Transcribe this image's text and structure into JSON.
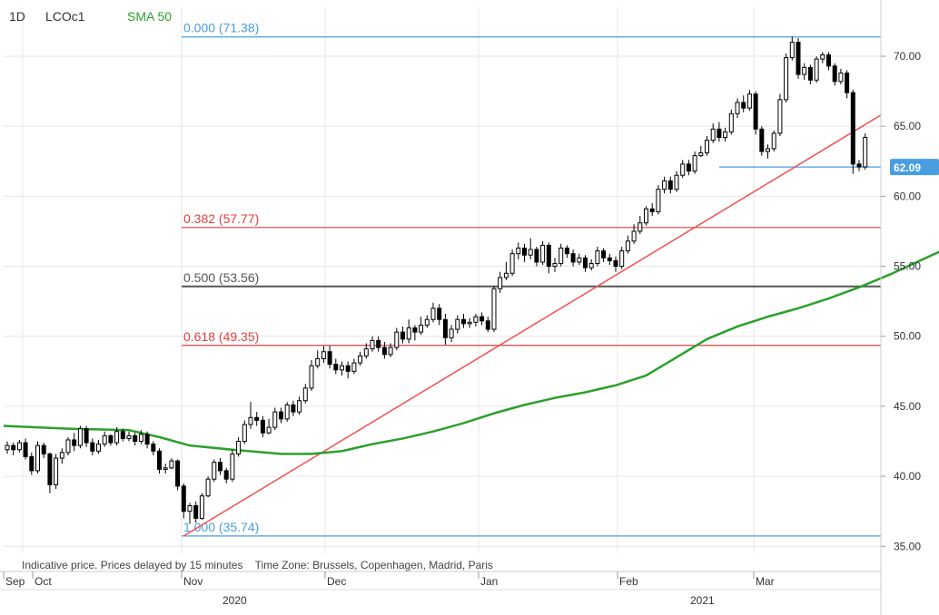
{
  "header": {
    "interval": "1D",
    "symbol": "LCOc1",
    "indicator": "SMA 50"
  },
  "footer_note": "Indicative price. Prices delayed by 15 minutes    Time Zone: Brussels, Copenhagen, Madrid, Paris",
  "colors": {
    "sma": "#2ca02c",
    "trend": "#f05050",
    "fib_blue": "#4a9ee0",
    "fib_red": "#e04040",
    "fib_gray": "#555555",
    "candle": "#000000",
    "last_price_badge": "#4a9ee0",
    "grid": "#e6e6e6"
  },
  "chart_data": {
    "type": "candlestick",
    "y_axis": {
      "range": [
        34.5,
        73.5
      ],
      "ticks": [
        "70.00",
        "65.00",
        "60.00",
        "55.00",
        "50.00",
        "45.00",
        "40.00",
        "35.00"
      ],
      "side": "right"
    },
    "x_axis": {
      "months": [
        "Sep",
        "Oct",
        "Nov",
        "Dec",
        "Jan",
        "Feb",
        "Mar"
      ],
      "years": [
        "2020",
        "2021"
      ]
    },
    "last_price": "62.09",
    "fibonacci": [
      {
        "label": "0.000 (71.38)",
        "value": 71.38,
        "color": "blue"
      },
      {
        "label": "0.382 (57.77)",
        "value": 57.77,
        "color": "red"
      },
      {
        "label": "0.500 (53.56)",
        "value": 53.56,
        "color": "gray"
      },
      {
        "label": "0.618 (49.35)",
        "value": 49.35,
        "color": "red"
      },
      {
        "label": "1.000 (35.74)",
        "value": 35.74,
        "color": "blue"
      }
    ],
    "support_line": {
      "value": 62.09
    },
    "trend_line": {
      "from": {
        "bar": 37,
        "value": 35.74
      },
      "to": {
        "bar": 186,
        "value": 65.8
      }
    },
    "sma50": [
      [
        0,
        43.6
      ],
      [
        10,
        43.4
      ],
      [
        20,
        43.3
      ],
      [
        25,
        42.8
      ],
      [
        30,
        42.2
      ],
      [
        37,
        41.9
      ],
      [
        45,
        41.6
      ],
      [
        50,
        41.6
      ],
      [
        55,
        41.8
      ],
      [
        60,
        42.3
      ],
      [
        65,
        42.7
      ],
      [
        70,
        43.2
      ],
      [
        75,
        43.8
      ],
      [
        80,
        44.5
      ],
      [
        85,
        45.1
      ],
      [
        90,
        45.6
      ],
      [
        95,
        46.0
      ],
      [
        100,
        46.5
      ],
      [
        105,
        47.2
      ],
      [
        110,
        48.5
      ],
      [
        115,
        49.8
      ],
      [
        120,
        50.7
      ],
      [
        125,
        51.4
      ],
      [
        130,
        52.0
      ],
      [
        135,
        52.7
      ],
      [
        140,
        53.5
      ],
      [
        145,
        54.4
      ],
      [
        150,
        55.4
      ],
      [
        155,
        56.4
      ],
      [
        160,
        57.3
      ],
      [
        165,
        57.9
      ],
      [
        170,
        58.8
      ],
      [
        175,
        60.2
      ],
      [
        180,
        61.1
      ],
      [
        183,
        61.5
      ],
      [
        185,
        61.7
      ]
    ],
    "candles": [
      [
        41.9,
        42.2,
        41.6,
        42.5
      ],
      [
        42.2,
        41.9,
        41.5,
        42.4
      ],
      [
        41.9,
        42.4,
        41.7,
        42.6
      ],
      [
        42.4,
        41.4,
        41.2,
        42.7
      ],
      [
        41.4,
        40.4,
        40.1,
        41.7
      ],
      [
        40.4,
        42.2,
        40.2,
        42.5
      ],
      [
        42.2,
        41.6,
        41.3,
        42.4
      ],
      [
        41.6,
        39.4,
        38.8,
        41.7
      ],
      [
        39.4,
        41.3,
        39.1,
        41.6
      ],
      [
        41.3,
        41.7,
        40.9,
        42.0
      ],
      [
        41.7,
        42.6,
        41.5,
        42.8
      ],
      [
        42.6,
        42.2,
        41.8,
        43.1
      ],
      [
        42.2,
        43.4,
        42.0,
        43.6
      ],
      [
        43.4,
        42.4,
        42.1,
        43.6
      ],
      [
        42.4,
        41.8,
        41.5,
        42.7
      ],
      [
        41.8,
        42.3,
        41.6,
        42.6
      ],
      [
        42.3,
        42.9,
        42.1,
        43.2
      ],
      [
        42.9,
        42.4,
        42.2,
        43.0
      ],
      [
        42.4,
        43.2,
        42.2,
        43.5
      ],
      [
        43.2,
        42.7,
        42.5,
        43.4
      ],
      [
        42.7,
        42.9,
        42.5,
        43.2
      ],
      [
        42.9,
        42.5,
        42.2,
        43.1
      ],
      [
        42.5,
        43.0,
        42.3,
        43.3
      ],
      [
        43.0,
        42.3,
        42.0,
        43.2
      ],
      [
        42.3,
        41.8,
        41.5,
        42.5
      ],
      [
        41.8,
        40.5,
        40.2,
        42.0
      ],
      [
        40.5,
        40.6,
        40.2,
        40.9
      ],
      [
        40.6,
        41.1,
        40.5,
        41.3
      ],
      [
        41.1,
        39.3,
        39.0,
        41.2
      ],
      [
        39.3,
        37.5,
        37.0,
        39.5
      ],
      [
        37.5,
        37.9,
        36.6,
        38.1
      ],
      [
        37.9,
        37.0,
        36.7,
        38.2
      ],
      [
        37.0,
        38.6,
        36.9,
        38.8
      ],
      [
        38.6,
        39.8,
        38.5,
        40.0
      ],
      [
        39.8,
        41.0,
        39.6,
        41.2
      ],
      [
        41.0,
        40.4,
        40.1,
        41.3
      ],
      [
        40.4,
        39.8,
        39.5,
        40.6
      ],
      [
        39.8,
        41.6,
        39.6,
        41.9
      ],
      [
        41.6,
        42.5,
        41.4,
        42.8
      ],
      [
        42.5,
        43.7,
        42.3,
        44.0
      ],
      [
        43.7,
        44.2,
        43.4,
        45.3
      ],
      [
        44.2,
        44.0,
        43.6,
        44.6
      ],
      [
        44.0,
        43.1,
        42.8,
        44.3
      ],
      [
        43.1,
        43.5,
        43.0,
        44.1
      ],
      [
        43.5,
        44.6,
        43.3,
        44.9
      ],
      [
        44.6,
        44.1,
        43.8,
        44.9
      ],
      [
        44.1,
        45.1,
        43.9,
        45.3
      ],
      [
        45.1,
        44.6,
        44.3,
        45.4
      ],
      [
        44.6,
        45.4,
        44.4,
        45.7
      ],
      [
        45.4,
        46.3,
        45.2,
        46.6
      ],
      [
        46.3,
        47.9,
        46.1,
        48.3
      ],
      [
        47.9,
        48.4,
        47.7,
        49.0
      ],
      [
        48.4,
        48.9,
        48.1,
        49.3
      ],
      [
        48.9,
        48.0,
        47.7,
        49.3
      ],
      [
        48.0,
        47.6,
        47.3,
        48.4
      ],
      [
        47.6,
        47.9,
        47.2,
        48.2
      ],
      [
        47.9,
        47.5,
        47.0,
        48.2
      ],
      [
        47.5,
        48.1,
        47.3,
        48.4
      ],
      [
        48.1,
        48.6,
        47.9,
        48.9
      ],
      [
        48.6,
        49.1,
        48.4,
        49.5
      ],
      [
        49.1,
        49.7,
        48.9,
        50.0
      ],
      [
        49.7,
        49.2,
        48.9,
        50.0
      ],
      [
        49.2,
        48.7,
        48.4,
        49.6
      ],
      [
        48.7,
        49.2,
        48.5,
        49.5
      ],
      [
        49.2,
        50.3,
        49.0,
        50.6
      ],
      [
        50.3,
        49.8,
        49.5,
        50.7
      ],
      [
        49.8,
        50.6,
        49.5,
        51.2
      ],
      [
        50.6,
        50.3,
        49.7,
        50.8
      ],
      [
        50.3,
        50.8,
        50.1,
        51.4
      ],
      [
        50.8,
        51.2,
        50.6,
        51.5
      ],
      [
        51.2,
        52.0,
        51.0,
        52.4
      ],
      [
        52.0,
        51.2,
        50.8,
        52.3
      ],
      [
        51.2,
        49.9,
        49.4,
        51.6
      ],
      [
        49.9,
        50.5,
        49.6,
        50.8
      ],
      [
        50.5,
        51.2,
        50.2,
        51.5
      ],
      [
        51.2,
        50.9,
        50.6,
        51.6
      ],
      [
        50.9,
        51.0,
        50.6,
        51.3
      ],
      [
        51.0,
        51.4,
        50.7,
        51.6
      ],
      [
        51.4,
        51.1,
        50.8,
        51.7
      ],
      [
        51.1,
        50.5,
        50.3,
        51.4
      ],
      [
        50.5,
        53.4,
        50.3,
        53.6
      ],
      [
        53.4,
        54.2,
        53.1,
        54.6
      ],
      [
        54.2,
        54.5,
        54.0,
        55.3
      ],
      [
        54.5,
        55.9,
        54.3,
        56.2
      ],
      [
        55.9,
        56.3,
        55.5,
        56.7
      ],
      [
        56.3,
        55.8,
        55.3,
        56.6
      ],
      [
        55.8,
        56.2,
        55.5,
        57.0
      ],
      [
        56.2,
        55.3,
        55.0,
        56.4
      ],
      [
        55.3,
        56.5,
        55.1,
        56.8
      ],
      [
        56.5,
        55.0,
        54.5,
        56.7
      ],
      [
        55.0,
        55.2,
        54.6,
        55.6
      ],
      [
        55.2,
        56.3,
        55.0,
        56.6
      ],
      [
        56.3,
        55.9,
        55.6,
        56.5
      ],
      [
        55.9,
        55.3,
        55.0,
        56.2
      ],
      [
        55.3,
        55.6,
        55.1,
        55.9
      ],
      [
        55.6,
        54.9,
        54.6,
        55.8
      ],
      [
        54.9,
        55.2,
        54.7,
        55.5
      ],
      [
        55.2,
        56.1,
        55.0,
        56.4
      ],
      [
        56.1,
        55.6,
        55.3,
        56.3
      ],
      [
        55.6,
        55.4,
        55.1,
        55.9
      ],
      [
        55.4,
        55.0,
        54.6,
        55.7
      ],
      [
        55.0,
        56.1,
        54.8,
        56.4
      ],
      [
        56.1,
        56.8,
        55.9,
        57.2
      ],
      [
        56.8,
        57.5,
        56.6,
        58.0
      ],
      [
        57.5,
        58.1,
        57.3,
        58.6
      ],
      [
        58.1,
        59.1,
        57.9,
        59.3
      ],
      [
        59.1,
        58.9,
        58.6,
        59.5
      ],
      [
        58.9,
        60.5,
        58.7,
        60.8
      ],
      [
        60.5,
        61.1,
        60.2,
        61.4
      ],
      [
        61.1,
        60.5,
        60.2,
        61.4
      ],
      [
        60.5,
        61.5,
        60.3,
        61.8
      ],
      [
        61.5,
        62.3,
        61.3,
        62.6
      ],
      [
        62.3,
        61.8,
        61.5,
        62.6
      ],
      [
        61.8,
        62.9,
        61.6,
        63.2
      ],
      [
        62.9,
        63.1,
        62.8,
        63.6
      ],
      [
        63.1,
        64.0,
        62.9,
        64.3
      ],
      [
        64.0,
        64.8,
        63.8,
        65.2
      ],
      [
        64.8,
        64.2,
        63.9,
        65.3
      ],
      [
        64.2,
        64.6,
        63.9,
        64.9
      ],
      [
        64.6,
        65.9,
        64.4,
        66.2
      ],
      [
        65.9,
        66.7,
        65.6,
        67.0
      ],
      [
        66.7,
        66.3,
        66.0,
        67.2
      ],
      [
        66.3,
        67.3,
        66.1,
        67.6
      ],
      [
        67.3,
        64.8,
        64.4,
        67.5
      ],
      [
        64.8,
        63.2,
        62.9,
        65.0
      ],
      [
        63.2,
        63.4,
        62.7,
        63.7
      ],
      [
        63.4,
        64.5,
        63.2,
        64.7
      ],
      [
        64.5,
        66.9,
        64.3,
        67.3
      ],
      [
        66.9,
        69.9,
        66.7,
        70.2
      ],
      [
        69.9,
        71.0,
        69.7,
        71.4
      ],
      [
        71.0,
        68.7,
        68.4,
        71.3
      ],
      [
        68.7,
        69.2,
        68.3,
        69.5
      ],
      [
        69.2,
        68.3,
        68.0,
        69.4
      ],
      [
        68.3,
        69.8,
        68.1,
        70.0
      ],
      [
        69.8,
        70.1,
        69.5,
        70.3
      ],
      [
        70.1,
        69.3,
        69.0,
        70.3
      ],
      [
        69.3,
        68.2,
        67.9,
        69.5
      ],
      [
        68.2,
        68.8,
        68.0,
        69.1
      ],
      [
        68.8,
        67.4,
        67.0,
        69.0
      ],
      [
        67.4,
        62.3,
        61.6,
        67.6
      ],
      [
        62.3,
        62.1,
        61.8,
        62.6
      ],
      [
        62.1,
        64.2,
        61.9,
        64.5
      ]
    ]
  }
}
